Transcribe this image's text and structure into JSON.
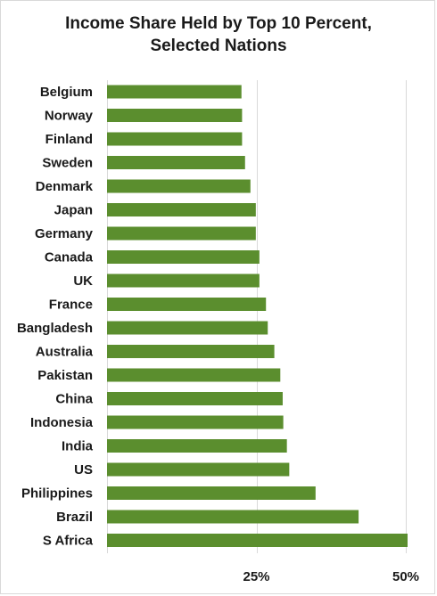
{
  "chart_data": {
    "type": "bar",
    "orientation": "horizontal",
    "title_lines": [
      "Income Share Held by Top 10 Percent,",
      "Selected Nations"
    ],
    "xlabel": "",
    "ylabel": "",
    "categories": [
      "Belgium",
      "Norway",
      "Finland",
      "Sweden",
      "Denmark",
      "Japan",
      "Germany",
      "Canada",
      "UK",
      "France",
      "Bangladesh",
      "Australia",
      "Pakistan",
      "China",
      "Indonesia",
      "India",
      "US",
      "Philippines",
      "Brazil",
      "S Africa"
    ],
    "values": [
      22.5,
      22.6,
      22.6,
      23.1,
      24.0,
      24.9,
      24.9,
      25.5,
      25.5,
      26.6,
      26.9,
      28.0,
      29.0,
      29.4,
      29.5,
      30.1,
      30.5,
      34.9,
      42.1,
      50.3
    ],
    "xlim": [
      0,
      50
    ],
    "x_ticks": [
      25,
      50
    ],
    "x_tick_labels": [
      "25%",
      "50%"
    ],
    "grid": "vertical",
    "bar_color": "#5b8e2e",
    "grid_color": "#d9d9d9"
  }
}
